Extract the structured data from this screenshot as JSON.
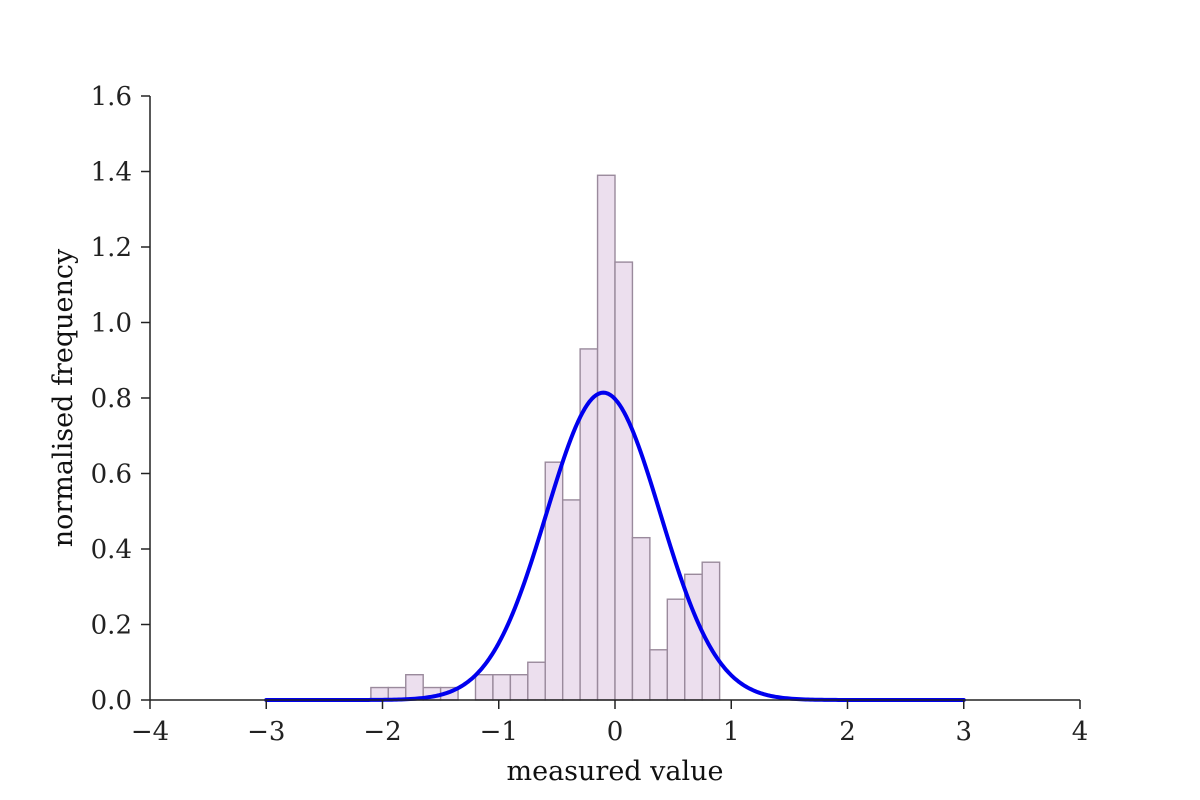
{
  "chart_data": {
    "type": "bar",
    "title": "",
    "xlabel": "measured value",
    "ylabel": "normalised frequency",
    "xlim": [
      -4,
      4
    ],
    "ylim": [
      0,
      1.6
    ],
    "xticks": [
      -4,
      -3,
      -2,
      -1,
      0,
      1,
      2,
      3,
      4
    ],
    "xtick_labels": [
      "−4",
      "−3",
      "−2",
      "−1",
      "0",
      "1",
      "2",
      "3",
      "4"
    ],
    "yticks": [
      0.0,
      0.2,
      0.4,
      0.6,
      0.8,
      1.0,
      1.2,
      1.4,
      1.6
    ],
    "ytick_labels": [
      "0.0",
      "0.2",
      "0.4",
      "0.6",
      "0.8",
      "1.0",
      "1.2",
      "1.4",
      "1.6"
    ],
    "grid": false,
    "histogram": {
      "bin_start": -2.1,
      "bin_width": 0.15,
      "values": [
        0.033,
        0.033,
        0.067,
        0.033,
        0.033,
        0.0,
        0.067,
        0.067,
        0.067,
        0.1,
        0.63,
        0.53,
        0.93,
        1.39,
        1.16,
        0.43,
        0.133,
        0.267,
        0.333,
        0.365
      ],
      "color": "#ecdfee",
      "edge_color": "#9a8a9c"
    },
    "fit_curve": {
      "type": "normal",
      "mean": -0.1,
      "std": 0.49,
      "x_range": [
        -3,
        3
      ],
      "color": "#0000ee"
    }
  }
}
